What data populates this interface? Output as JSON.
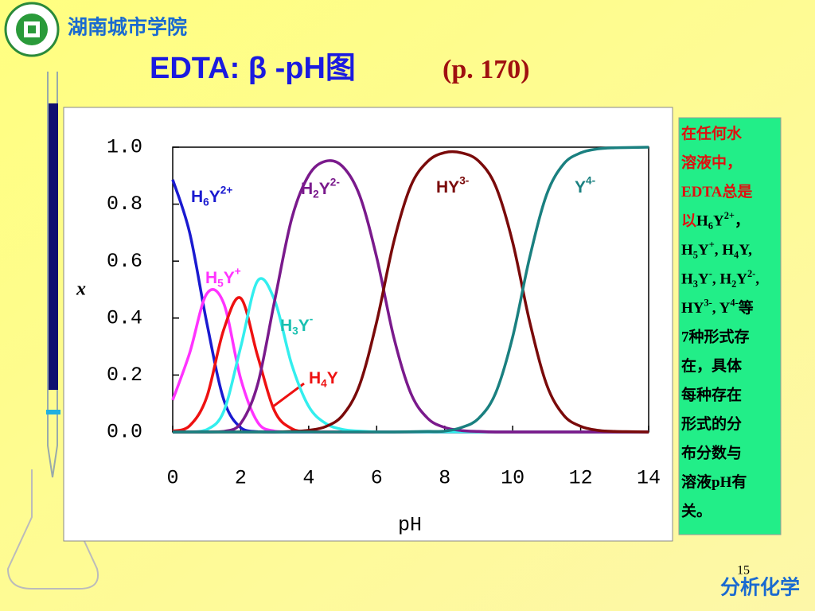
{
  "header": {
    "school": "湖南城市学院",
    "title": "EDTA: β -pH图",
    "subtitle": "(p. 170)"
  },
  "chart_data": {
    "type": "line",
    "xlabel": "pH",
    "ylabel": "x",
    "x": [
      0,
      0.5,
      1,
      1.5,
      2,
      2.5,
      3,
      3.5,
      4,
      4.5,
      5,
      5.5,
      6,
      6.5,
      7,
      7.5,
      8,
      8.5,
      9,
      9.5,
      10,
      10.5,
      11,
      11.5,
      12,
      12.5,
      13,
      13.5,
      14
    ],
    "series": [
      {
        "name": "H6Y2+",
        "color": "#1a1ad0",
        "values": [
          0.886,
          0.699,
          0.385,
          0.114,
          0.015,
          0.001,
          0,
          0,
          0,
          0,
          0,
          0,
          0,
          0,
          0,
          0,
          0,
          0,
          0,
          0,
          0,
          0,
          0,
          0,
          0,
          0,
          0,
          0,
          0
        ]
      },
      {
        "name": "H5Y+",
        "color": "#ff33ff",
        "values": [
          0.112,
          0.278,
          0.485,
          0.452,
          0.187,
          0.034,
          0.003,
          0,
          0,
          0,
          0,
          0,
          0,
          0,
          0,
          0,
          0,
          0,
          0,
          0,
          0,
          0,
          0,
          0,
          0,
          0,
          0,
          0,
          0
        ]
      },
      {
        "name": "H4Y",
        "color": "#ee1111",
        "values": [
          0.003,
          0.022,
          0.122,
          0.359,
          0.47,
          0.266,
          0.073,
          0.012,
          0.001,
          0,
          0,
          0,
          0,
          0,
          0,
          0,
          0,
          0,
          0,
          0,
          0,
          0,
          0,
          0,
          0,
          0,
          0,
          0,
          0
        ]
      },
      {
        "name": "H3Y-",
        "color": "#33eeee",
        "values": [
          0,
          0,
          0.008,
          0.072,
          0.298,
          0.531,
          0.462,
          0.237,
          0.09,
          0.03,
          0.009,
          0.003,
          0,
          0,
          0,
          0,
          0,
          0,
          0,
          0,
          0,
          0,
          0,
          0,
          0,
          0,
          0,
          0,
          0
        ]
      },
      {
        "name": "H2Y2-",
        "color": "#7a1a8c",
        "values": [
          0,
          0,
          0,
          0.002,
          0.03,
          0.168,
          0.462,
          0.749,
          0.901,
          0.951,
          0.932,
          0.83,
          0.613,
          0.334,
          0.137,
          0.048,
          0.016,
          0.005,
          0.002,
          0,
          0,
          0,
          0,
          0,
          0,
          0,
          0,
          0,
          0
        ]
      },
      {
        "name": "HY3-",
        "color": "#7a0a0a",
        "values": [
          0,
          0,
          0,
          0,
          0,
          0,
          0,
          0.002,
          0.006,
          0.019,
          0.059,
          0.166,
          0.387,
          0.666,
          0.863,
          0.95,
          0.981,
          0.98,
          0.951,
          0.863,
          0.666,
          0.387,
          0.166,
          0.059,
          0.02,
          0.006,
          0.002,
          0.001,
          0
        ]
      },
      {
        "name": "Y4-",
        "color": "#1a8080",
        "values": [
          0,
          0,
          0,
          0,
          0,
          0,
          0,
          0,
          0,
          0,
          0,
          0,
          0,
          0,
          0.001,
          0.002,
          0.003,
          0.016,
          0.048,
          0.137,
          0.334,
          0.613,
          0.834,
          0.941,
          0.98,
          0.994,
          0.998,
          0.999,
          1
        ]
      }
    ],
    "xlim": [
      0,
      14
    ],
    "xticks": [
      0,
      2,
      4,
      6,
      8,
      10,
      12,
      14
    ],
    "ylim": [
      0,
      1
    ],
    "yticks": [
      {
        "value": 0,
        "label": "0.0"
      },
      {
        "value": 0.2,
        "label": "0.2"
      },
      {
        "value": 0.4,
        "label": "0.4"
      },
      {
        "value": 0.6,
        "label": "0.6"
      },
      {
        "value": 0.8,
        "label": "0.8"
      },
      {
        "value": 1,
        "label": "1.0"
      }
    ]
  },
  "note": {
    "lines": [
      [
        "在任何水"
      ],
      [
        "溶液中，"
      ],
      [
        "EDTA总是"
      ],
      [
        "以",
        "H6Y2+，"
      ],
      [
        "H5Y+, H4Y,"
      ],
      [
        "H3Y-, H2Y2-,"
      ],
      [
        "HY3-, Y4-等"
      ],
      [
        "7种形式存"
      ],
      [
        "在，具体"
      ],
      [
        "每种存在"
      ],
      [
        "形式的分"
      ],
      [
        "布分数与"
      ],
      [
        "溶液pH有"
      ],
      [
        "关。"
      ]
    ]
  },
  "footer": {
    "page": "15",
    "course": "分析化学"
  }
}
